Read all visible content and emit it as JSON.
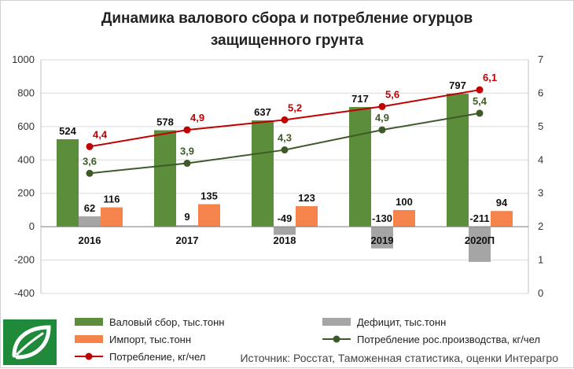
{
  "title_line1": "Динамика валового сбора и потребление огурцов",
  "title_line2": "защищенного грунта",
  "source": "Источник: Росстат, Таможенная статистика, оценки Интерагро",
  "colors": {
    "gross": "#5b8d3a",
    "deficit": "#a5a5a5",
    "import": "#f5844c",
    "domestic": "#3d5a28",
    "consumption": "#c00000",
    "logo": "#1f8a3a"
  },
  "chart_data": {
    "type": "bar",
    "categories": [
      "2016",
      "2017",
      "2018",
      "2019",
      "2020П"
    ],
    "ylim_left": [
      -400,
      1000
    ],
    "yticks_left": [
      -400,
      -200,
      0,
      200,
      400,
      600,
      800,
      1000
    ],
    "ylim_right": [
      0,
      7
    ],
    "yticks_right": [
      0,
      1,
      2,
      3,
      4,
      5,
      6,
      7
    ],
    "grid": true,
    "legend_position": "bottom",
    "series": [
      {
        "name": "Валовый сбор, тыс.тонн",
        "kind": "bar",
        "axis": "left",
        "values": [
          524,
          578,
          637,
          717,
          797
        ],
        "labels": [
          "524",
          "578",
          "637",
          "717",
          "797"
        ]
      },
      {
        "name": "Дефицит, тыс.тонн",
        "kind": "bar",
        "axis": "left",
        "values": [
          62,
          9,
          -49,
          -130,
          -211
        ],
        "labels": [
          "62",
          "9",
          "-49",
          "-130",
          "-211"
        ]
      },
      {
        "name": "Импорт, тыс.тонн",
        "kind": "bar",
        "axis": "left",
        "values": [
          116,
          135,
          123,
          100,
          94
        ],
        "labels": [
          "116",
          "135",
          "123",
          "100",
          "94"
        ]
      },
      {
        "name": "Потребление рос.производства, кг/чел",
        "kind": "line",
        "axis": "right",
        "values": [
          3.6,
          3.9,
          4.3,
          4.9,
          5.4
        ],
        "labels": [
          "3,6",
          "3,9",
          "4,3",
          "4,9",
          "5,4"
        ]
      },
      {
        "name": "Потребление, кг/чел",
        "kind": "line",
        "axis": "right",
        "values": [
          4.4,
          4.9,
          5.2,
          5.6,
          6.1
        ],
        "labels": [
          "4,4",
          "4,9",
          "5,2",
          "5,6",
          "6,1"
        ]
      }
    ]
  }
}
